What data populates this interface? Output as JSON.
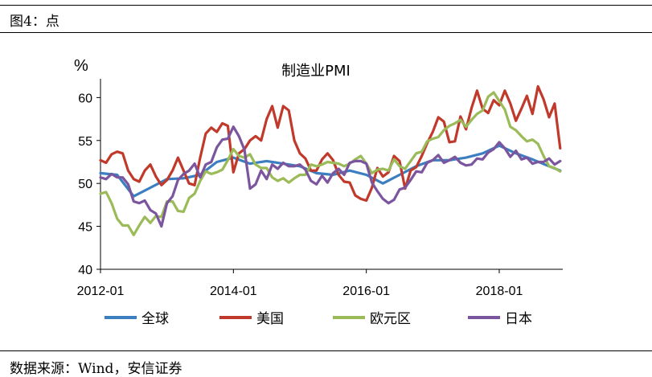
{
  "figure": {
    "title": "图4：点",
    "source": "数据来源：Wind，安信证券"
  },
  "chart_data": {
    "type": "line",
    "title": "制造业PMI",
    "unit_label": "%",
    "x_ticks": [
      "2012-01",
      "2014-01",
      "2016-01",
      "2018-01"
    ],
    "x_range": [
      "2012-01",
      "2018-12"
    ],
    "y_ticks": [
      40,
      45,
      50,
      55,
      60
    ],
    "ylim": [
      40,
      62
    ],
    "grid": false,
    "legend_position": "bottom",
    "series": [
      {
        "name": "全球",
        "color": "#3B7FC0",
        "points": [
          [
            "2012-01",
            51.2
          ],
          [
            "2012-04",
            51.0
          ],
          [
            "2012-07",
            48.5
          ],
          [
            "2012-10",
            49.5
          ],
          [
            "2013-01",
            50.5
          ],
          [
            "2013-04",
            50.6
          ],
          [
            "2013-07",
            51.0
          ],
          [
            "2013-10",
            52.5
          ],
          [
            "2014-01",
            53.0
          ],
          [
            "2014-04",
            52.3
          ],
          [
            "2014-07",
            52.6
          ],
          [
            "2014-10",
            52.3
          ],
          [
            "2015-01",
            52.0
          ],
          [
            "2015-04",
            51.2
          ],
          [
            "2015-07",
            51.0
          ],
          [
            "2015-10",
            51.5
          ],
          [
            "2016-01",
            51.0
          ],
          [
            "2016-04",
            50.0
          ],
          [
            "2016-07",
            51.0
          ],
          [
            "2016-10",
            52.0
          ],
          [
            "2017-01",
            52.7
          ],
          [
            "2017-04",
            52.7
          ],
          [
            "2017-07",
            53.0
          ],
          [
            "2017-10",
            53.5
          ],
          [
            "2018-01",
            54.4
          ],
          [
            "2018-04",
            53.5
          ],
          [
            "2018-07",
            52.8
          ],
          [
            "2018-10",
            52.0
          ],
          [
            "2018-12",
            51.5
          ]
        ]
      },
      {
        "name": "美国",
        "color": "#C0392B",
        "points": [
          [
            "2012-01",
            52.7
          ],
          [
            "2012-02",
            52.4
          ],
          [
            "2012-03",
            53.4
          ],
          [
            "2012-04",
            53.7
          ],
          [
            "2012-05",
            53.5
          ],
          [
            "2012-06",
            51.5
          ],
          [
            "2012-07",
            50.5
          ],
          [
            "2012-08",
            50.2
          ],
          [
            "2012-09",
            51.5
          ],
          [
            "2012-10",
            52.2
          ],
          [
            "2012-11",
            50.8
          ],
          [
            "2012-12",
            49.8
          ],
          [
            "2013-01",
            50.4
          ],
          [
            "2013-02",
            51.5
          ],
          [
            "2013-03",
            53.0
          ],
          [
            "2013-04",
            51.5
          ],
          [
            "2013-05",
            50.0
          ],
          [
            "2013-06",
            49.8
          ],
          [
            "2013-07",
            53.0
          ],
          [
            "2013-08",
            55.8
          ],
          [
            "2013-09",
            56.5
          ],
          [
            "2013-10",
            56.0
          ],
          [
            "2013-11",
            57.0
          ],
          [
            "2013-12",
            56.7
          ],
          [
            "2014-01",
            51.3
          ],
          [
            "2014-02",
            53.5
          ],
          [
            "2014-03",
            54.0
          ],
          [
            "2014-04",
            55.0
          ],
          [
            "2014-05",
            55.5
          ],
          [
            "2014-06",
            55.0
          ],
          [
            "2014-07",
            57.5
          ],
          [
            "2014-08",
            59.0
          ],
          [
            "2014-09",
            56.5
          ],
          [
            "2014-10",
            59.0
          ],
          [
            "2014-11",
            58.5
          ],
          [
            "2014-12",
            55.0
          ],
          [
            "2015-01",
            53.5
          ],
          [
            "2015-02",
            52.9
          ],
          [
            "2015-03",
            51.5
          ],
          [
            "2015-04",
            51.5
          ],
          [
            "2015-05",
            52.8
          ],
          [
            "2015-06",
            53.5
          ],
          [
            "2015-07",
            52.7
          ],
          [
            "2015-08",
            51.0
          ],
          [
            "2015-09",
            50.2
          ],
          [
            "2015-10",
            50.1
          ],
          [
            "2015-11",
            48.6
          ],
          [
            "2015-12",
            48.2
          ],
          [
            "2016-01",
            48.0
          ],
          [
            "2016-02",
            49.5
          ],
          [
            "2016-03",
            51.8
          ],
          [
            "2016-04",
            50.8
          ],
          [
            "2016-05",
            51.3
          ],
          [
            "2016-06",
            53.2
          ],
          [
            "2016-07",
            52.6
          ],
          [
            "2016-08",
            49.4
          ],
          [
            "2016-09",
            51.5
          ],
          [
            "2016-10",
            51.9
          ],
          [
            "2016-11",
            53.2
          ],
          [
            "2016-12",
            54.7
          ],
          [
            "2017-01",
            56.0
          ],
          [
            "2017-02",
            57.7
          ],
          [
            "2017-03",
            57.2
          ],
          [
            "2017-04",
            54.8
          ],
          [
            "2017-05",
            54.9
          ],
          [
            "2017-06",
            57.8
          ],
          [
            "2017-07",
            56.3
          ],
          [
            "2017-08",
            58.8
          ],
          [
            "2017-09",
            60.8
          ],
          [
            "2017-10",
            58.7
          ],
          [
            "2017-11",
            58.2
          ],
          [
            "2017-12",
            59.7
          ],
          [
            "2018-01",
            59.1
          ],
          [
            "2018-02",
            60.8
          ],
          [
            "2018-03",
            59.3
          ],
          [
            "2018-04",
            57.3
          ],
          [
            "2018-05",
            58.7
          ],
          [
            "2018-06",
            60.2
          ],
          [
            "2018-07",
            58.1
          ],
          [
            "2018-08",
            61.3
          ],
          [
            "2018-09",
            59.8
          ],
          [
            "2018-10",
            57.7
          ],
          [
            "2018-11",
            59.3
          ],
          [
            "2018-12",
            54.1
          ]
        ]
      },
      {
        "name": "欧元区",
        "color": "#9BBB59",
        "points": [
          [
            "2012-01",
            48.8
          ],
          [
            "2012-02",
            49.0
          ],
          [
            "2012-03",
            47.7
          ],
          [
            "2012-04",
            45.9
          ],
          [
            "2012-05",
            45.1
          ],
          [
            "2012-06",
            45.1
          ],
          [
            "2012-07",
            44.0
          ],
          [
            "2012-08",
            45.1
          ],
          [
            "2012-09",
            46.1
          ],
          [
            "2012-10",
            45.4
          ],
          [
            "2012-11",
            46.2
          ],
          [
            "2012-12",
            46.1
          ],
          [
            "2013-01",
            47.9
          ],
          [
            "2013-02",
            47.9
          ],
          [
            "2013-03",
            46.8
          ],
          [
            "2013-04",
            46.7
          ],
          [
            "2013-05",
            48.3
          ],
          [
            "2013-06",
            48.8
          ],
          [
            "2013-07",
            50.3
          ],
          [
            "2013-08",
            51.4
          ],
          [
            "2013-09",
            51.1
          ],
          [
            "2013-10",
            51.3
          ],
          [
            "2013-11",
            51.6
          ],
          [
            "2013-12",
            52.7
          ],
          [
            "2014-01",
            54.0
          ],
          [
            "2014-02",
            53.2
          ],
          [
            "2014-03",
            53.0
          ],
          [
            "2014-04",
            53.4
          ],
          [
            "2014-05",
            52.2
          ],
          [
            "2014-06",
            51.8
          ],
          [
            "2014-07",
            51.8
          ],
          [
            "2014-08",
            50.7
          ],
          [
            "2014-09",
            50.3
          ],
          [
            "2014-10",
            50.6
          ],
          [
            "2014-11",
            50.1
          ],
          [
            "2014-12",
            50.6
          ],
          [
            "2015-01",
            51.0
          ],
          [
            "2015-02",
            51.0
          ],
          [
            "2015-03",
            52.2
          ],
          [
            "2015-04",
            52.0
          ],
          [
            "2015-05",
            52.2
          ],
          [
            "2015-06",
            52.5
          ],
          [
            "2015-07",
            52.4
          ],
          [
            "2015-08",
            52.3
          ],
          [
            "2015-09",
            52.0
          ],
          [
            "2015-10",
            52.3
          ],
          [
            "2015-11",
            52.8
          ],
          [
            "2015-12",
            53.2
          ],
          [
            "2016-01",
            52.3
          ],
          [
            "2016-02",
            51.2
          ],
          [
            "2016-03",
            51.6
          ],
          [
            "2016-04",
            51.7
          ],
          [
            "2016-05",
            51.5
          ],
          [
            "2016-06",
            52.8
          ],
          [
            "2016-07",
            52.0
          ],
          [
            "2016-08",
            51.7
          ],
          [
            "2016-09",
            52.6
          ],
          [
            "2016-10",
            53.5
          ],
          [
            "2016-11",
            53.7
          ],
          [
            "2016-12",
            54.9
          ],
          [
            "2017-01",
            55.2
          ],
          [
            "2017-02",
            55.4
          ],
          [
            "2017-03",
            56.2
          ],
          [
            "2017-04",
            56.7
          ],
          [
            "2017-05",
            57.0
          ],
          [
            "2017-06",
            57.4
          ],
          [
            "2017-07",
            56.6
          ],
          [
            "2017-08",
            57.4
          ],
          [
            "2017-09",
            58.1
          ],
          [
            "2017-10",
            58.5
          ],
          [
            "2017-11",
            60.1
          ],
          [
            "2017-12",
            60.6
          ],
          [
            "2018-01",
            59.6
          ],
          [
            "2018-02",
            58.6
          ],
          [
            "2018-03",
            56.6
          ],
          [
            "2018-04",
            56.2
          ],
          [
            "2018-05",
            55.5
          ],
          [
            "2018-06",
            54.9
          ],
          [
            "2018-07",
            55.1
          ],
          [
            "2018-08",
            54.6
          ],
          [
            "2018-09",
            53.2
          ],
          [
            "2018-10",
            52.0
          ],
          [
            "2018-11",
            51.8
          ],
          [
            "2018-12",
            51.4
          ]
        ]
      },
      {
        "name": "日本",
        "color": "#7B559E",
        "points": [
          [
            "2012-01",
            50.7
          ],
          [
            "2012-02",
            50.5
          ],
          [
            "2012-03",
            51.1
          ],
          [
            "2012-04",
            50.7
          ],
          [
            "2012-05",
            50.7
          ],
          [
            "2012-06",
            49.9
          ],
          [
            "2012-07",
            47.9
          ],
          [
            "2012-08",
            47.7
          ],
          [
            "2012-09",
            48.0
          ],
          [
            "2012-10",
            46.9
          ],
          [
            "2012-11",
            46.5
          ],
          [
            "2012-12",
            45.0
          ],
          [
            "2013-01",
            47.7
          ],
          [
            "2013-02",
            48.5
          ],
          [
            "2013-03",
            50.4
          ],
          [
            "2013-04",
            51.1
          ],
          [
            "2013-05",
            51.5
          ],
          [
            "2013-06",
            52.3
          ],
          [
            "2013-07",
            50.7
          ],
          [
            "2013-08",
            52.2
          ],
          [
            "2013-09",
            52.5
          ],
          [
            "2013-10",
            54.2
          ],
          [
            "2013-11",
            55.1
          ],
          [
            "2013-12",
            55.2
          ],
          [
            "2014-01",
            56.6
          ],
          [
            "2014-02",
            55.5
          ],
          [
            "2014-03",
            53.9
          ],
          [
            "2014-04",
            49.4
          ],
          [
            "2014-05",
            49.9
          ],
          [
            "2014-06",
            51.5
          ],
          [
            "2014-07",
            50.5
          ],
          [
            "2014-08",
            52.2
          ],
          [
            "2014-09",
            51.7
          ],
          [
            "2014-10",
            52.4
          ],
          [
            "2014-11",
            52.0
          ],
          [
            "2014-12",
            52.0
          ],
          [
            "2015-01",
            52.2
          ],
          [
            "2015-02",
            51.6
          ],
          [
            "2015-03",
            50.3
          ],
          [
            "2015-04",
            49.9
          ],
          [
            "2015-05",
            50.9
          ],
          [
            "2015-06",
            50.1
          ],
          [
            "2015-07",
            51.2
          ],
          [
            "2015-08",
            51.7
          ],
          [
            "2015-09",
            51.0
          ],
          [
            "2015-10",
            52.4
          ],
          [
            "2015-11",
            52.6
          ],
          [
            "2015-12",
            52.6
          ],
          [
            "2016-01",
            52.3
          ],
          [
            "2016-02",
            50.1
          ],
          [
            "2016-03",
            49.1
          ],
          [
            "2016-04",
            48.2
          ],
          [
            "2016-05",
            47.7
          ],
          [
            "2016-06",
            48.1
          ],
          [
            "2016-07",
            49.3
          ],
          [
            "2016-08",
            49.5
          ],
          [
            "2016-09",
            50.4
          ],
          [
            "2016-10",
            51.4
          ],
          [
            "2016-11",
            51.3
          ],
          [
            "2016-12",
            52.4
          ],
          [
            "2017-01",
            52.7
          ],
          [
            "2017-02",
            53.3
          ],
          [
            "2017-03",
            52.4
          ],
          [
            "2017-04",
            52.7
          ],
          [
            "2017-05",
            53.1
          ],
          [
            "2017-06",
            52.4
          ],
          [
            "2017-07",
            52.1
          ],
          [
            "2017-08",
            52.2
          ],
          [
            "2017-09",
            52.9
          ],
          [
            "2017-10",
            52.8
          ],
          [
            "2017-11",
            53.6
          ],
          [
            "2017-12",
            54.0
          ],
          [
            "2018-01",
            54.8
          ],
          [
            "2018-02",
            54.1
          ],
          [
            "2018-03",
            53.1
          ],
          [
            "2018-04",
            53.8
          ],
          [
            "2018-05",
            52.8
          ],
          [
            "2018-06",
            53.0
          ],
          [
            "2018-07",
            52.3
          ],
          [
            "2018-08",
            52.5
          ],
          [
            "2018-09",
            52.5
          ],
          [
            "2018-10",
            52.9
          ],
          [
            "2018-11",
            52.2
          ],
          [
            "2018-12",
            52.6
          ]
        ]
      }
    ]
  }
}
